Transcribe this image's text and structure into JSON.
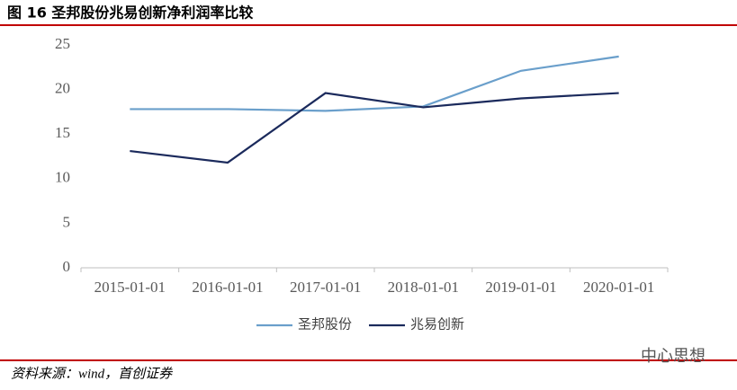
{
  "chart_data": {
    "type": "line",
    "title": "图 16 圣邦股份兆易创新净利润率比较",
    "source": "资料来源：wind，首创证券",
    "watermark": "中心思想",
    "categories": [
      "2015-01-01",
      "2016-01-01",
      "2017-01-01",
      "2018-01-01",
      "2019-01-01",
      "2020-01-01"
    ],
    "series": [
      {
        "name": "圣邦股份",
        "color": "#6a9fcb",
        "values": [
          17.8,
          17.8,
          17.6,
          18.1,
          22.1,
          23.7
        ]
      },
      {
        "name": "兆易创新",
        "color": "#1b2a5c",
        "values": [
          13.1,
          11.8,
          19.6,
          18.0,
          19.0,
          19.6
        ]
      }
    ],
    "ylim": [
      0,
      25
    ],
    "yticks": [
      0,
      5,
      10,
      15,
      20,
      25
    ],
    "grid": false,
    "legend": "bottom"
  }
}
